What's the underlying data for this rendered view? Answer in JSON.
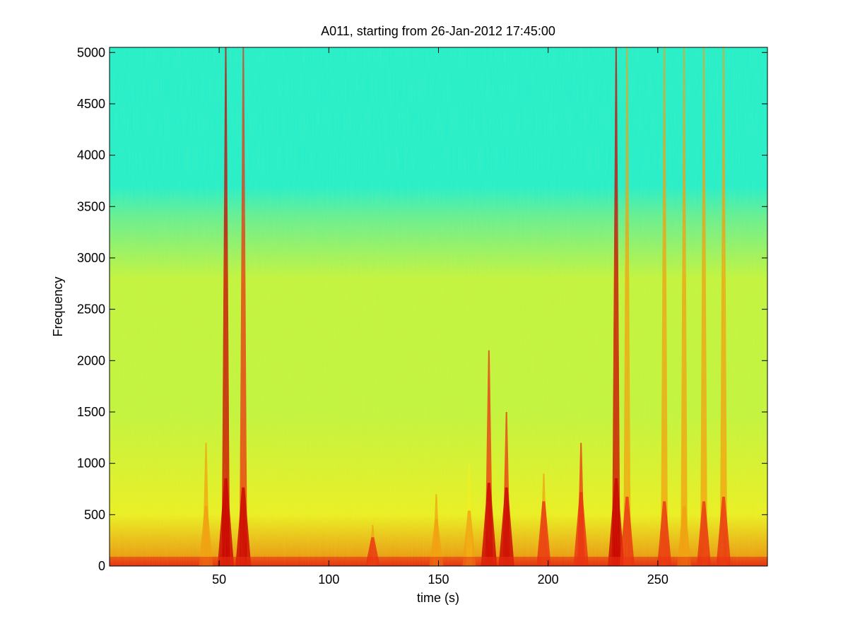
{
  "chart_data": {
    "type": "heatmap",
    "title": "A011, starting from 26-Jan-2012 17:45:00",
    "xlabel": "time (s)",
    "ylabel": "Frequency",
    "xlim": [
      0,
      300
    ],
    "ylim": [
      0,
      5050
    ],
    "xticks": [
      50,
      100,
      150,
      200,
      250
    ],
    "yticks": [
      0,
      500,
      1000,
      1500,
      2000,
      2500,
      3000,
      3500,
      4000,
      4500,
      5000
    ],
    "colormap": [
      "#00c8ff",
      "#2af0c8",
      "#6cf090",
      "#c8f53c",
      "#f0f020",
      "#f0a010",
      "#e83010",
      "#c80000"
    ],
    "background_level": {
      "low_freq_band_0_500": 0.72,
      "band_500_1500": 0.5,
      "band_2500_3000": 0.45,
      "band_3500_5000": 0.2
    },
    "broadband_events_s": [
      {
        "t": 44,
        "peak_freq": 1200,
        "intensity": 0.65
      },
      {
        "t": 53,
        "peak_freq": 5050,
        "intensity": 0.95
      },
      {
        "t": 61,
        "peak_freq": 5050,
        "intensity": 0.85
      },
      {
        "t": 120,
        "peak_freq": 400,
        "intensity": 0.7
      },
      {
        "t": 149,
        "peak_freq": 700,
        "intensity": 0.65
      },
      {
        "t": 164,
        "peak_freq": 1000,
        "intensity": 0.6
      },
      {
        "t": 173,
        "peak_freq": 2100,
        "intensity": 0.9
      },
      {
        "t": 181,
        "peak_freq": 1500,
        "intensity": 0.85
      },
      {
        "t": 198,
        "peak_freq": 900,
        "intensity": 0.7
      },
      {
        "t": 215,
        "peak_freq": 1200,
        "intensity": 0.8
      },
      {
        "t": 231,
        "peak_freq": 5050,
        "intensity": 0.95
      },
      {
        "t": 236,
        "peak_freq": 5050,
        "intensity": 0.75
      },
      {
        "t": 253,
        "peak_freq": 5050,
        "intensity": 0.7
      },
      {
        "t": 262,
        "peak_freq": 5050,
        "intensity": 0.65
      },
      {
        "t": 271,
        "peak_freq": 5050,
        "intensity": 0.7
      },
      {
        "t": 280,
        "peak_freq": 5050,
        "intensity": 0.75
      }
    ],
    "grid": false
  }
}
